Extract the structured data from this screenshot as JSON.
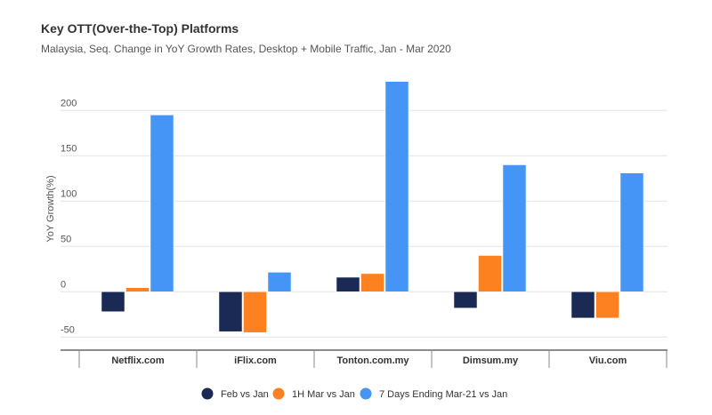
{
  "chart_data": {
    "type": "bar",
    "title": "Key OTT(Over-the-Top) Platforms",
    "subtitle": "Malaysia, Seq. Change in YoY Growth Rates, Desktop + Mobile Traffic, Jan - Mar 2020",
    "xlabel": "",
    "ylabel": "YoY Growth(%)",
    "ylim": [
      -50,
      232
    ],
    "yticks": [
      200,
      150,
      100,
      50,
      0,
      -50
    ],
    "grid": true,
    "legend_position": "bottom",
    "categories": [
      "Netflix.com",
      "iFlix.com",
      "Tonton.com.my",
      "Dimsum.my",
      "Viu.com"
    ],
    "series": [
      {
        "name": "Feb vs Jan",
        "color": "#1b2a55",
        "values": [
          -22,
          -44,
          16,
          -18,
          -29
        ]
      },
      {
        "name": "1H Mar vs Jan",
        "color": "#fd8120",
        "values": [
          4.5,
          -45,
          20,
          40,
          -29
        ]
      },
      {
        "name": "7 Days Ending Mar-21 vs Jan",
        "color": "#4495f5",
        "values": [
          195,
          21.5,
          232,
          140,
          131
        ]
      }
    ]
  }
}
